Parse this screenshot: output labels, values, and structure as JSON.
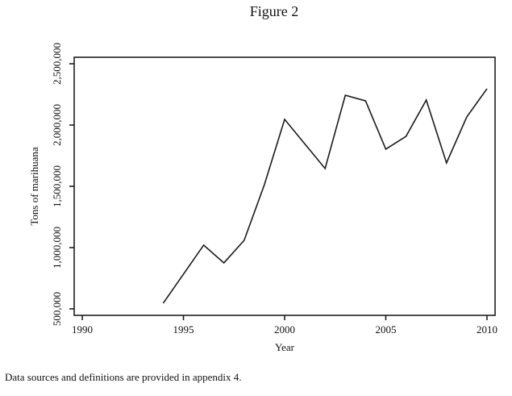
{
  "chart_data": {
    "type": "line",
    "title": "Figure 2",
    "x_label": "Year",
    "y_label": "Tons of marihuana",
    "note": "Data sources and definitions are provided in appendix 4.",
    "x": [
      1994,
      1996,
      1997,
      1998,
      1999,
      2000,
      2002,
      2003,
      2004,
      2005,
      2006,
      2007,
      2008,
      2009,
      2010
    ],
    "series": [
      {
        "color": "#1a1a1a",
        "values": [
          546000,
          1020000,
          875000,
          1059000,
          1513000,
          2046000,
          1645000,
          2243000,
          2197000,
          1803000,
          1908000,
          2204000,
          1691000,
          2066000,
          2296000
        ]
      }
    ],
    "xlim": [
      1989.6,
      2010.4
    ],
    "xticks": [
      1990,
      1995,
      2000,
      2005,
      2010
    ],
    "ylim": [
      447000,
      2553000
    ],
    "yticks": [
      {
        "value": 500000,
        "label": "500,000"
      },
      {
        "value": 1000000,
        "label": "1,000,000"
      },
      {
        "value": 1500000,
        "label": "1,500,000"
      },
      {
        "value": 2000000,
        "label": "2,000,000"
      },
      {
        "value": 2500000,
        "label": "2,500,000"
      }
    ]
  }
}
